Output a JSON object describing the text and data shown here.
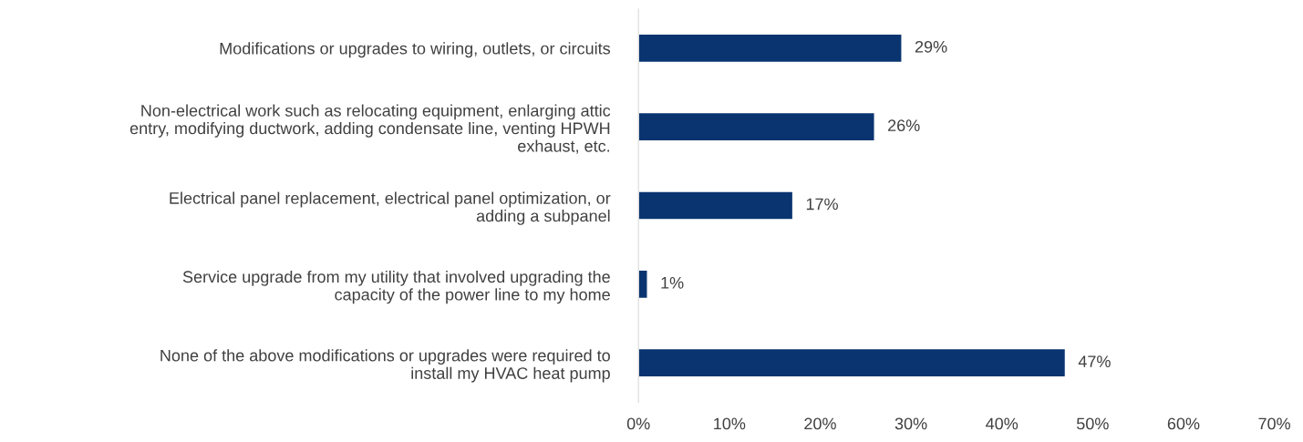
{
  "chart_data": {
    "type": "bar",
    "orientation": "horizontal",
    "categories": [
      "Modifications or upgrades to wiring, outlets, or circuits",
      "Non-electrical work such as relocating equipment, enlarging attic\nentry, modifying ductwork, adding condensate line, venting HPWH\nexhaust, etc.",
      "Electrical panel replacement, electrical panel optimization, or\nadding a subpanel",
      "Service upgrade from my utility that involved upgrading the\ncapacity of the power line to my home",
      "None of the above modifications or upgrades were required to\ninstall my HVAC heat pump"
    ],
    "values": [
      29,
      26,
      17,
      1,
      47
    ],
    "value_labels": [
      "29%",
      "26%",
      "17%",
      "1%",
      "47%"
    ],
    "color": "#0a3470",
    "xlim": [
      0,
      70
    ],
    "xticks": [
      {
        "value": 0,
        "label": "0%"
      },
      {
        "value": 10,
        "label": "10%"
      },
      {
        "value": 20,
        "label": "20%"
      },
      {
        "value": 30,
        "label": "30%"
      },
      {
        "value": 40,
        "label": "40%"
      },
      {
        "value": 50,
        "label": "50%"
      },
      {
        "value": 60,
        "label": "60%"
      },
      {
        "value": 70,
        "label": "70%"
      }
    ],
    "grid": false,
    "legend": false
  }
}
